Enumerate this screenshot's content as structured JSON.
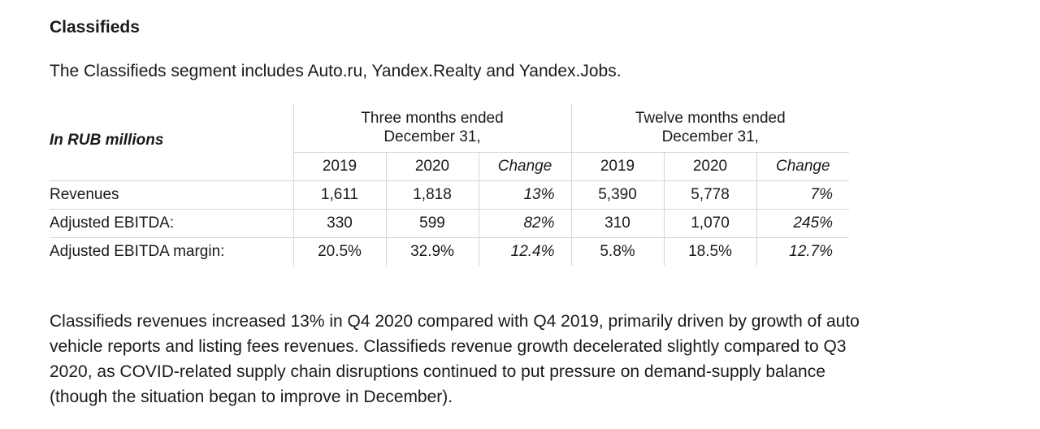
{
  "heading": "Classifieds",
  "intro": "The Classifieds segment includes Auto.ru, Yandex.Realty and Yandex.Jobs.",
  "table": {
    "unit_label": "In RUB millions",
    "group1_line1": "Three months ended",
    "group1_line2": "December 31,",
    "group2_line1": "Twelve months ended",
    "group2_line2": "December 31,",
    "col_year1": "2019",
    "col_year2": "2020",
    "col_change": "Change",
    "rows": [
      {
        "label": "Revenues",
        "q2019": "1,611",
        "q2020": "1,818",
        "q_change": "13%",
        "y2019": "5,390",
        "y2020": "5,778",
        "y_change": "7%"
      },
      {
        "label": "Adjusted EBITDA:",
        "q2019": "330",
        "q2020": "599",
        "q_change": "82%",
        "y2019": "310",
        "y2020": "1,070",
        "y_change": "245%"
      },
      {
        "label": "Adjusted EBITDA margin:",
        "q2019": "20.5%",
        "q2020": "32.9%",
        "q_change": "12.4%",
        "y2019": "5.8%",
        "y2020": "18.5%",
        "y_change": "12.7%"
      }
    ]
  },
  "body_text": "Classifieds revenues increased 13% in Q4 2020 compared with Q4 2019, primarily driven by growth of auto vehicle reports and listing fees revenues. Classifieds revenue growth decelerated slightly compared to Q3 2020, as COVID-related supply chain disruptions continued to put pressure on demand-supply balance (though the situation began to improve in December)."
}
